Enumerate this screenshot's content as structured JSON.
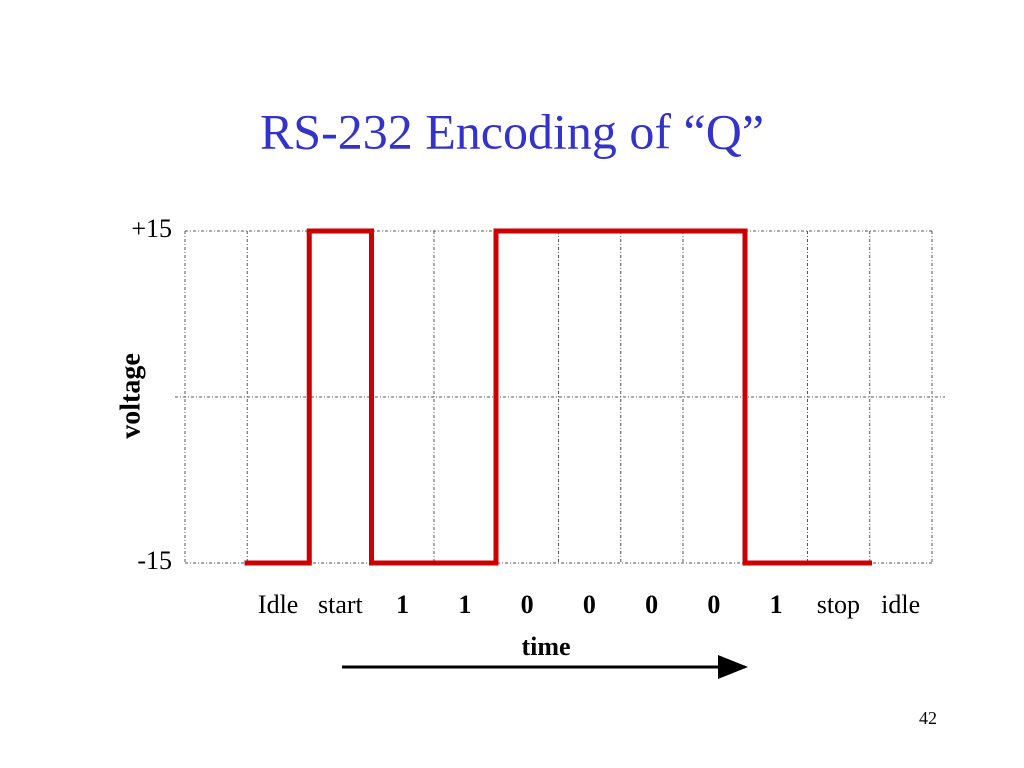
{
  "chart_data": {
    "type": "step",
    "title": "RS-232 Encoding of “Q”",
    "ylabel": "voltage",
    "xlabel": "time",
    "categories": [
      "Idle",
      "start",
      "1",
      "1",
      "0",
      "0",
      "0",
      "0",
      "1",
      "stop",
      "idle"
    ],
    "values": [
      -15,
      15,
      -15,
      -15,
      15,
      15,
      15,
      15,
      -15,
      -15,
      null
    ],
    "color": "#cc0000",
    "ylim": [
      -15,
      15
    ],
    "yticks": [
      {
        "value": 15,
        "label": "+15"
      },
      -15
    ],
    "grid": true
  },
  "page_number": "42"
}
